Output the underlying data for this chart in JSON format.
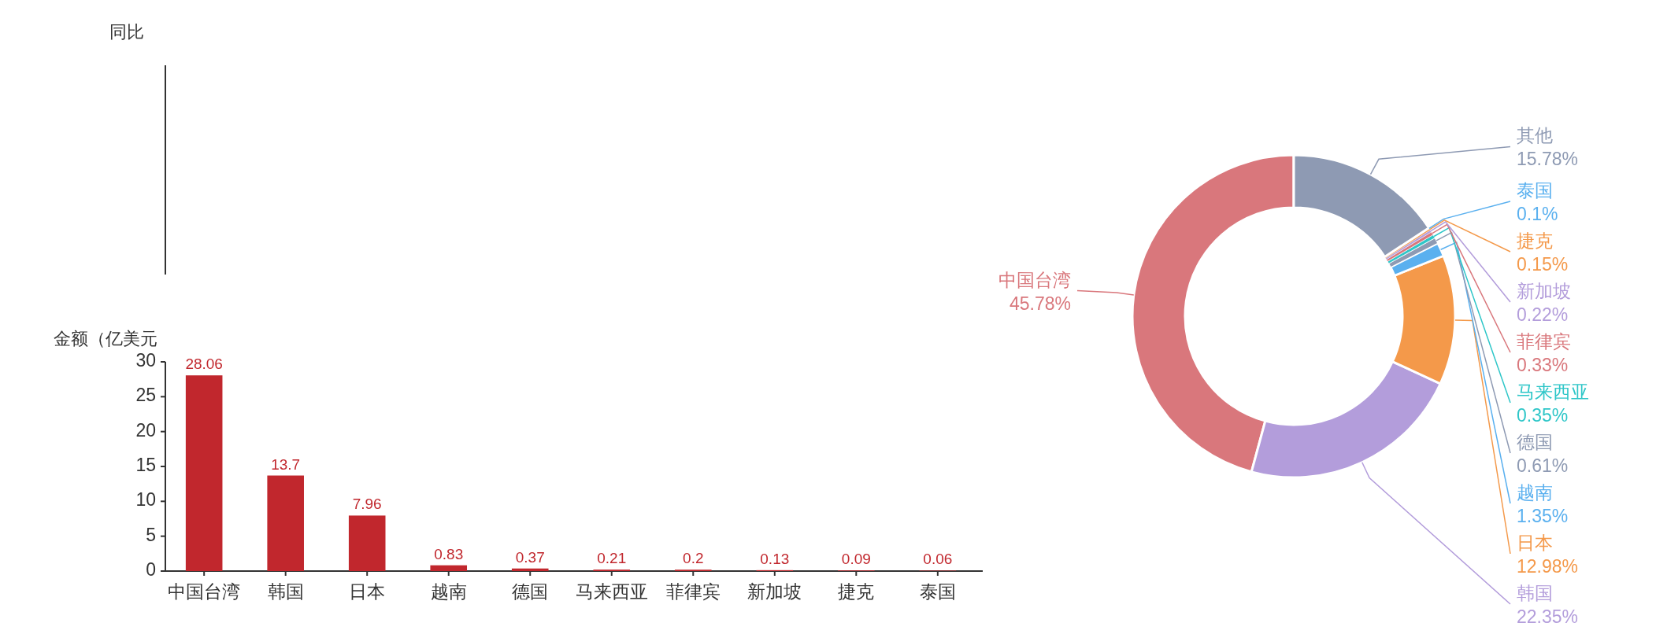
{
  "chart_data": [
    {
      "type": "other",
      "ylabel": "同比"
    },
    {
      "type": "bar",
      "ylabel": "金额（亿美元",
      "categories": [
        "中国台湾",
        "韩国",
        "日本",
        "越南",
        "德国",
        "马来西亚",
        "菲律宾",
        "新加坡",
        "捷克",
        "泰国"
      ],
      "values": [
        28.06,
        13.7,
        7.96,
        0.83,
        0.37,
        0.21,
        0.2,
        0.13,
        0.09,
        0.06
      ],
      "color": "#c1272d",
      "ylim": [
        0,
        30
      ],
      "yticks": [
        0,
        5,
        10,
        15,
        20,
        25,
        30
      ],
      "data_labels": true
    },
    {
      "type": "donut",
      "categories": [
        "中国台湾",
        "韩国",
        "日本",
        "越南",
        "德国",
        "马来西亚",
        "菲律宾",
        "新加坡",
        "捷克",
        "泰国",
        "其他"
      ],
      "values": [
        45.78,
        22.35,
        12.98,
        1.35,
        0.61,
        0.35,
        0.33,
        0.22,
        0.15,
        0.1,
        15.78
      ],
      "colors": [
        "#d9777c",
        "#b39ddb",
        "#f4994a",
        "#5ab0ef",
        "#8e9ab3",
        "#2ec6c8",
        "#d9777c",
        "#b39ddb",
        "#f4994a",
        "#5ab0ef",
        "#8e9ab3"
      ],
      "value_labels": [
        "45.78%",
        "22.35%",
        "12.98%",
        "1.35%",
        "0.61%",
        "0.35%",
        "0.33%",
        "0.22%",
        "0.15%",
        "0.1%",
        "15.78%"
      ]
    }
  ]
}
